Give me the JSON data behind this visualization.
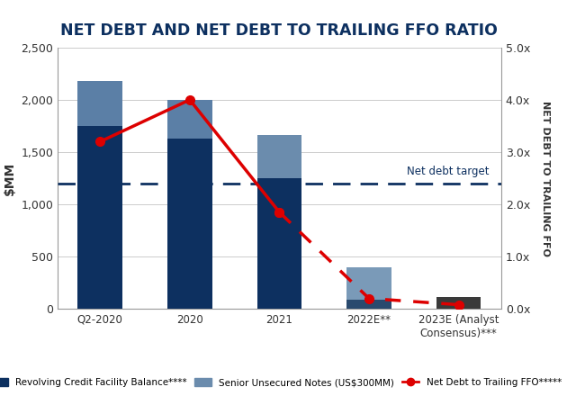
{
  "title": "NET DEBT AND NET DEBT TO TRAILING FFO RATIO",
  "categories": [
    "Q2-2020",
    "2020",
    "2021",
    "2022E**",
    "2023E (Analyst\nConsensus)***"
  ],
  "revolving_credit": [
    1750,
    1630,
    1250,
    90,
    0
  ],
  "senior_unsecured": [
    430,
    370,
    410,
    310,
    115
  ],
  "net_debt_to_ffo": [
    3.2,
    4.0,
    1.85,
    0.2,
    0.08
  ],
  "net_debt_target": 1200,
  "ylim_left": [
    0,
    2500
  ],
  "ylim_right": [
    0,
    5.0
  ],
  "ylabel_left": "$MM",
  "ylabel_right": "NET DEBT TO TRAILING FFO",
  "bar_colors_dark": [
    "#0d3060",
    "#0d3060",
    "#0d3060",
    "#2a4a6e",
    "#111111"
  ],
  "bar_colors_light": [
    "#5b7fa6",
    "#5b7fa6",
    "#6b8cad",
    "#7a9ab8",
    "#3a3a3a"
  ],
  "line_color": "#dd0000",
  "target_line_color": "#0d3060",
  "net_debt_target_label": "Net debt target",
  "legend_items": [
    {
      "label": "Revolving Credit Facility Balance****",
      "color": "#0d3060"
    },
    {
      "label": "Senior Unsecured Notes (US$300MM)",
      "color": "#6b8cad"
    },
    {
      "label": "Net Debt to Trailing FFO*****",
      "color": "#dd0000"
    }
  ],
  "yticks_left": [
    0,
    500,
    1000,
    1500,
    2000,
    2500
  ],
  "yticks_right": [
    0.0,
    1.0,
    2.0,
    3.0,
    4.0,
    5.0
  ],
  "background_color": "#ffffff",
  "grid_color": "#cccccc",
  "title_color": "#0d3060",
  "text_color": "#333333"
}
